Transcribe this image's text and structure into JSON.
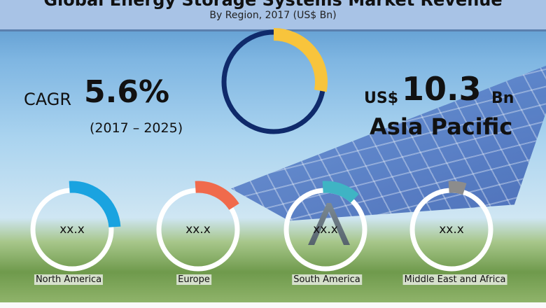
{
  "header": {
    "title": "Global Energy Storage Systems Market Revenue",
    "subtitle": "By Region, 2017 (US$ Bn)"
  },
  "cagr": {
    "label": "CAGR",
    "value": "5.6%",
    "period": "(2017 – 2025)"
  },
  "highlight": {
    "currency": "US$",
    "value": "10.3",
    "unit": "Bn",
    "region": "Asia Pacific"
  },
  "chart_data": {
    "type": "pie",
    "title": "Global Energy Storage Systems Market Revenue",
    "subtitle": "By Region, 2017 (US$ Bn)",
    "main": {
      "region": "Asia Pacific",
      "value": 10.3,
      "share_shown": 0.28,
      "color": "#f8c43c",
      "ring_color": "#0f2a6b"
    },
    "series": [
      {
        "name": "North America",
        "label": "xx.x",
        "share_shown": 0.24,
        "color": "#1aa3e0"
      },
      {
        "name": "Europe",
        "label": "xx.x",
        "share_shown": 0.16,
        "color": "#f06a4c"
      },
      {
        "name": "South America",
        "label": "xx.x",
        "share_shown": 0.12,
        "color": "#3fb4c4"
      },
      {
        "name": "Middle East and Africa",
        "label": "xx.x",
        "share_shown": 0.05,
        "color": "#8c8c8c"
      }
    ]
  }
}
